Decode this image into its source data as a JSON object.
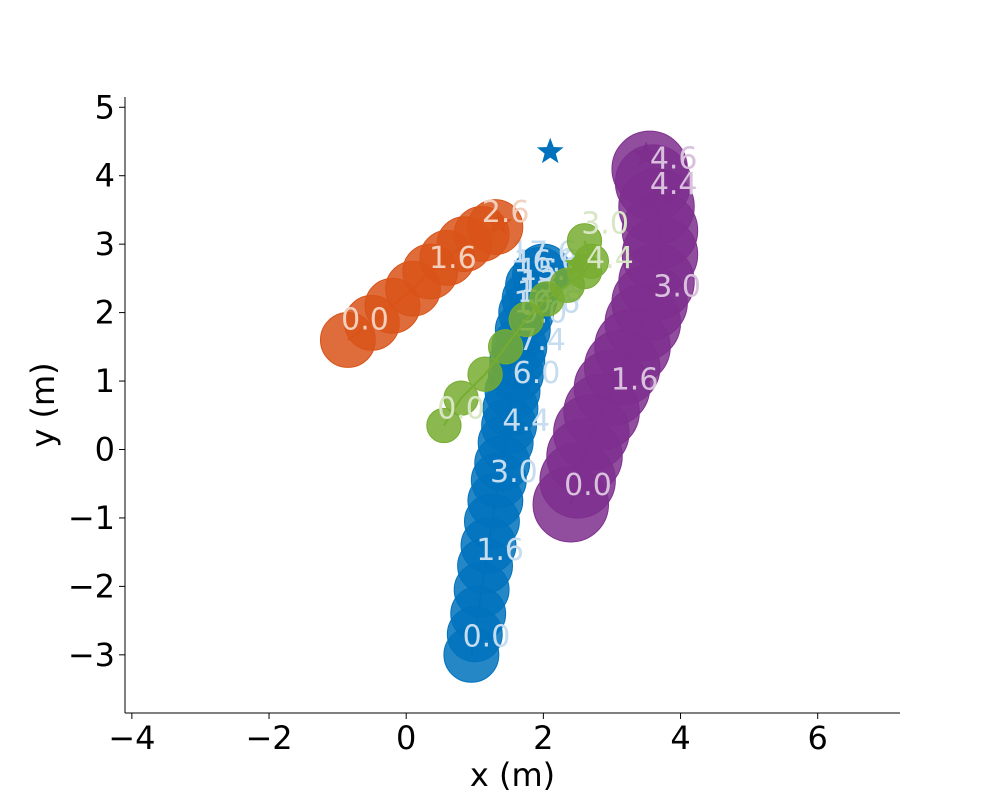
{
  "chart_data": {
    "type": "scatter",
    "title": "",
    "xlabel": "x (m)",
    "ylabel": "y (m)",
    "xlim": [
      -4.1,
      7.2
    ],
    "ylim": [
      -3.85,
      5.15
    ],
    "xticks": [
      -4,
      -2,
      0,
      2,
      4,
      6
    ],
    "yticks": [
      -3,
      -2,
      -1,
      0,
      1,
      2,
      3,
      4,
      5
    ],
    "xtick_labels": [
      "−4",
      "−2",
      "0",
      "2",
      "4",
      "6"
    ],
    "ytick_labels": [
      "−3",
      "−2",
      "−1",
      "0",
      "1",
      "2",
      "3",
      "4",
      "5"
    ],
    "grid": false,
    "legend": "none",
    "series": [
      {
        "color": "#0072bd",
        "label_color": "#c6dcef",
        "radius": 0.4,
        "goal": [
          2.1,
          4.35
        ],
        "points": [
          [
            0.95,
            -3.0
          ],
          [
            1.0,
            -2.7
          ],
          [
            1.05,
            -2.4
          ],
          [
            1.1,
            -2.05
          ],
          [
            1.15,
            -1.7
          ],
          [
            1.2,
            -1.4
          ],
          [
            1.25,
            -1.05
          ],
          [
            1.3,
            -0.75
          ],
          [
            1.35,
            -0.45
          ],
          [
            1.4,
            -0.2
          ],
          [
            1.45,
            0.1
          ],
          [
            1.5,
            0.35
          ],
          [
            1.52,
            0.6
          ],
          [
            1.55,
            0.85
          ],
          [
            1.6,
            1.1
          ],
          [
            1.62,
            1.3
          ],
          [
            1.65,
            1.5
          ],
          [
            1.7,
            1.75
          ],
          [
            1.75,
            2.0
          ],
          [
            1.8,
            2.2
          ],
          [
            1.85,
            2.4
          ],
          [
            1.95,
            2.55
          ],
          [
            2.0,
            2.6
          ]
        ],
        "labels": [
          {
            "text": "0.0",
            "x": 1.17,
            "y": -2.73
          },
          {
            "text": "1.6",
            "x": 1.37,
            "y": -1.47
          },
          {
            "text": "3.0",
            "x": 1.57,
            "y": -0.33
          },
          {
            "text": "4.4",
            "x": 1.75,
            "y": 0.42
          },
          {
            "text": "6.0",
            "x": 1.9,
            "y": 1.12
          },
          {
            "text": "7.4",
            "x": 1.98,
            "y": 1.6
          },
          {
            "text": "9.0",
            "x": 2.0,
            "y": 2.0
          },
          {
            "text": "10.6",
            "x": 2.05,
            "y": 2.15
          },
          {
            "text": "12.0",
            "x": 2.1,
            "y": 2.3
          },
          {
            "text": "13.6",
            "x": 2.15,
            "y": 2.45
          },
          {
            "text": "15.0",
            "x": 2.12,
            "y": 2.62
          },
          {
            "text": "16.6",
            "x": 2.05,
            "y": 2.75
          },
          {
            "text": "17.6",
            "x": 2.0,
            "y": 2.88
          }
        ]
      },
      {
        "color": "#d95319",
        "label_color": "#f3d0bd",
        "radius": 0.4,
        "goal": [
          1.35,
          3.3
        ],
        "points": [
          [
            -0.85,
            1.6
          ],
          [
            -0.5,
            1.85
          ],
          [
            -0.2,
            2.1
          ],
          [
            0.1,
            2.35
          ],
          [
            0.35,
            2.6
          ],
          [
            0.6,
            2.8
          ],
          [
            0.85,
            3.0
          ],
          [
            1.1,
            3.15
          ],
          [
            1.3,
            3.25
          ]
        ],
        "labels": [
          {
            "text": "0.0",
            "x": -0.6,
            "y": 1.9
          },
          {
            "text": "1.6",
            "x": 0.68,
            "y": 2.8
          },
          {
            "text": "2.6",
            "x": 1.45,
            "y": 3.47
          }
        ]
      },
      {
        "color": "#7e2f8e",
        "label_color": "#d9c1de",
        "radius": 0.55,
        "goal": [
          3.5,
          4.3
        ],
        "points": [
          [
            2.4,
            -0.8
          ],
          [
            2.5,
            -0.45
          ],
          [
            2.6,
            -0.1
          ],
          [
            2.7,
            0.25
          ],
          [
            2.85,
            0.55
          ],
          [
            3.0,
            0.9
          ],
          [
            3.15,
            1.2
          ],
          [
            3.3,
            1.5
          ],
          [
            3.45,
            1.85
          ],
          [
            3.55,
            2.15
          ],
          [
            3.65,
            2.45
          ],
          [
            3.7,
            2.85
          ],
          [
            3.7,
            3.2
          ],
          [
            3.65,
            3.55
          ],
          [
            3.6,
            3.9
          ],
          [
            3.55,
            4.1
          ]
        ],
        "labels": [
          {
            "text": "0.0",
            "x": 2.65,
            "y": -0.52
          },
          {
            "text": "1.6",
            "x": 3.33,
            "y": 1.02
          },
          {
            "text": "3.0",
            "x": 3.95,
            "y": 2.38
          },
          {
            "text": "4.4",
            "x": 3.9,
            "y": 3.88
          },
          {
            "text": "4.6",
            "x": 3.9,
            "y": 4.25
          }
        ]
      },
      {
        "color": "#77ac30",
        "label_color": "#d8e6c5",
        "radius": 0.25,
        "goal": [
          2.5,
          2.7
        ],
        "points": [
          [
            0.55,
            0.35
          ],
          [
            0.8,
            0.75
          ],
          [
            1.15,
            1.1
          ],
          [
            1.45,
            1.5
          ],
          [
            1.75,
            1.9
          ],
          [
            2.05,
            2.2
          ],
          [
            2.35,
            2.4
          ],
          [
            2.6,
            2.6
          ],
          [
            2.7,
            2.75
          ],
          [
            2.6,
            3.05
          ]
        ],
        "labels": [
          {
            "text": "0.0",
            "x": 0.8,
            "y": 0.6
          },
          {
            "text": "3.0",
            "x": 2.9,
            "y": 3.3
          },
          {
            "text": "4.4",
            "x": 2.97,
            "y": 2.8
          }
        ]
      }
    ]
  }
}
